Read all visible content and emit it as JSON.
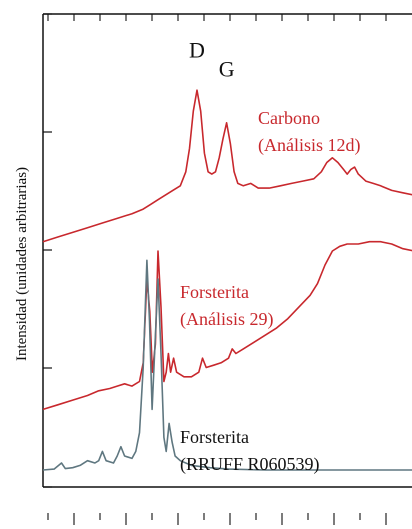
{
  "chart_data": {
    "type": "line",
    "title": "",
    "xlabel": "",
    "ylabel": "Intensidad (unidades arbitrarias)",
    "grid": false,
    "x_range": [
      0,
      100
    ],
    "y_range": [
      0,
      100
    ],
    "colors": {
      "red": "#c8282d",
      "gray": "#5f7780",
      "black": "#111111"
    },
    "peak_labels": [
      {
        "text": "D",
        "x": 41.5,
        "y": 91.5
      },
      {
        "text": "G",
        "x": 49.5,
        "y": 87.5
      }
    ],
    "series": [
      {
        "label_lines": [
          "Carbono",
          "(Análisis 12d)"
        ],
        "color": "#c8282d",
        "points": [
          [
            0,
            52
          ],
          [
            4,
            53
          ],
          [
            8,
            54
          ],
          [
            12,
            55
          ],
          [
            16,
            56
          ],
          [
            20,
            57
          ],
          [
            24,
            58
          ],
          [
            27,
            59
          ],
          [
            29,
            60
          ],
          [
            31,
            61
          ],
          [
            33,
            62
          ],
          [
            35,
            63
          ],
          [
            37,
            64
          ],
          [
            38.5,
            67
          ],
          [
            39.5,
            72
          ],
          [
            40.5,
            80
          ],
          [
            41.5,
            84.5
          ],
          [
            42.5,
            80
          ],
          [
            43.5,
            71
          ],
          [
            44.5,
            67
          ],
          [
            45.5,
            66.5
          ],
          [
            46.5,
            67
          ],
          [
            47.5,
            70
          ],
          [
            48.5,
            74
          ],
          [
            49.5,
            77.5
          ],
          [
            50.5,
            73
          ],
          [
            51.5,
            67
          ],
          [
            52.5,
            64.5
          ],
          [
            54,
            64
          ],
          [
            56,
            64.5
          ],
          [
            58,
            63.5
          ],
          [
            61,
            63.5
          ],
          [
            64,
            64
          ],
          [
            67,
            64.5
          ],
          [
            70,
            65
          ],
          [
            73,
            65.5
          ],
          [
            75,
            67
          ],
          [
            76.5,
            69
          ],
          [
            78,
            70
          ],
          [
            79.5,
            69
          ],
          [
            81,
            67.5
          ],
          [
            82,
            66.5
          ],
          [
            83,
            67.5
          ],
          [
            84,
            68
          ],
          [
            85,
            66.5
          ],
          [
            87,
            65
          ],
          [
            89,
            64.5
          ],
          [
            91,
            64
          ],
          [
            94,
            63
          ],
          [
            97,
            62.5
          ],
          [
            100,
            62
          ]
        ]
      },
      {
        "label_lines": [
          "Forsterita",
          "(Análisis 29)"
        ],
        "color": "#c8282d",
        "points": [
          [
            0,
            16
          ],
          [
            4,
            17
          ],
          [
            8,
            18
          ],
          [
            12,
            19
          ],
          [
            15,
            20
          ],
          [
            18,
            20.5
          ],
          [
            20,
            21
          ],
          [
            22,
            21.5
          ],
          [
            24,
            21
          ],
          [
            26,
            22
          ],
          [
            27,
            26
          ],
          [
            28,
            44
          ],
          [
            28.8,
            37
          ],
          [
            29.5,
            24
          ],
          [
            30.3,
            30
          ],
          [
            31,
            50
          ],
          [
            31.8,
            38
          ],
          [
            32.6,
            22
          ],
          [
            33.2,
            24
          ],
          [
            33.8,
            28
          ],
          [
            34.4,
            24
          ],
          [
            35.2,
            27
          ],
          [
            36,
            24
          ],
          [
            38,
            23
          ],
          [
            40,
            23
          ],
          [
            42,
            24
          ],
          [
            43,
            27
          ],
          [
            44,
            25
          ],
          [
            46,
            25.5
          ],
          [
            48,
            26
          ],
          [
            50,
            27
          ],
          [
            51,
            29
          ],
          [
            52,
            28
          ],
          [
            54,
            29
          ],
          [
            57,
            30.5
          ],
          [
            60,
            32
          ],
          [
            63,
            33.5
          ],
          [
            66,
            35.5
          ],
          [
            69,
            38
          ],
          [
            72,
            40.5
          ],
          [
            74,
            43
          ],
          [
            76,
            47
          ],
          [
            78,
            50
          ],
          [
            80,
            51
          ],
          [
            82,
            51.5
          ],
          [
            85,
            51.5
          ],
          [
            88,
            52
          ],
          [
            91,
            52
          ],
          [
            94,
            51.5
          ],
          [
            97,
            50.5
          ],
          [
            100,
            50
          ]
        ]
      },
      {
        "label_lines": [
          "Forsterita",
          "(RRUFF R060539)"
        ],
        "color": "#5f7780",
        "points": [
          [
            0,
            3
          ],
          [
            3,
            3.2
          ],
          [
            5,
            4.5
          ],
          [
            6,
            3.3
          ],
          [
            8,
            3.5
          ],
          [
            10,
            4
          ],
          [
            12,
            5
          ],
          [
            14,
            4.5
          ],
          [
            15,
            5
          ],
          [
            16,
            7
          ],
          [
            17,
            5
          ],
          [
            19,
            4.5
          ],
          [
            20,
            6
          ],
          [
            21,
            8
          ],
          [
            22,
            6
          ],
          [
            24,
            5.5
          ],
          [
            25,
            7
          ],
          [
            26,
            11
          ],
          [
            27,
            25
          ],
          [
            28,
            48
          ],
          [
            28.7,
            35
          ],
          [
            29.4,
            16
          ],
          [
            30.2,
            30
          ],
          [
            31,
            44
          ],
          [
            31.8,
            28
          ],
          [
            32.6,
            10
          ],
          [
            33.2,
            7
          ],
          [
            34,
            13
          ],
          [
            34.8,
            9
          ],
          [
            35.6,
            6
          ],
          [
            37,
            5
          ],
          [
            40,
            4
          ],
          [
            45,
            3.5
          ],
          [
            50,
            3.2
          ],
          [
            60,
            3
          ],
          [
            70,
            3
          ],
          [
            80,
            3
          ],
          [
            90,
            3
          ],
          [
            100,
            3
          ]
        ]
      }
    ]
  }
}
